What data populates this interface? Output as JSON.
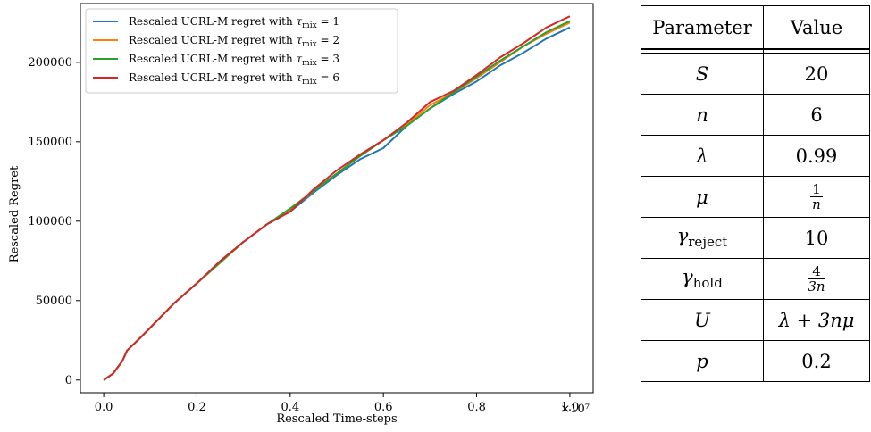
{
  "chart_data": {
    "type": "line",
    "title": "",
    "xlabel": "Rescaled Time-steps",
    "ylabel": "Rescaled Regret",
    "x_multiplier": "×10⁷",
    "xlim": [
      -0.05,
      1.05
    ],
    "ylim": [
      -8000,
      237000
    ],
    "xticks": [
      0.0,
      0.2,
      0.4,
      0.6,
      0.8,
      1.0
    ],
    "xtick_labels": [
      "0.0",
      "0.2",
      "0.4",
      "0.6",
      "0.8",
      "1.0"
    ],
    "yticks": [
      0,
      50000,
      100000,
      150000,
      200000
    ],
    "ytick_labels": [
      "0",
      "50000",
      "100000",
      "150000",
      "200000"
    ],
    "grid": false,
    "legend_position": "top-left",
    "x": [
      0.0,
      0.02,
      0.04,
      0.05,
      0.08,
      0.1,
      0.15,
      0.2,
      0.25,
      0.3,
      0.35,
      0.4,
      0.45,
      0.5,
      0.55,
      0.6,
      0.65,
      0.7,
      0.75,
      0.8,
      0.85,
      0.9,
      0.95,
      1.0
    ],
    "series": [
      {
        "name": "Rescaled UCRL-M regret with τ_mix = 1",
        "color": "#1f77b4",
        "values": [
          0,
          4000,
          12000,
          18500,
          27000,
          33000,
          48000,
          61000,
          74000,
          87000,
          98000,
          106000,
          118000,
          129000,
          139000,
          146000,
          160000,
          171000,
          180000,
          188000,
          198000,
          206000,
          215000,
          222000
        ]
      },
      {
        "name": "Rescaled UCRL-M regret with τ_mix = 2",
        "color": "#ff7f0e",
        "values": [
          0,
          4000,
          12000,
          18500,
          27000,
          33000,
          48000,
          61000,
          74000,
          87000,
          98000,
          107000,
          119000,
          130000,
          141000,
          151000,
          161000,
          173000,
          181000,
          190000,
          200000,
          210000,
          218000,
          225000
        ]
      },
      {
        "name": "Rescaled UCRL-M regret with τ_mix = 3",
        "color": "#2ca02c",
        "values": [
          0,
          4000,
          12000,
          18500,
          27000,
          33000,
          48000,
          61000,
          74000,
          87000,
          98000,
          108000,
          119000,
          130000,
          141000,
          151000,
          160000,
          171000,
          181000,
          191000,
          201000,
          210000,
          219000,
          226000
        ]
      },
      {
        "name": "Rescaled UCRL-M regret with τ_mix = 6",
        "color": "#d62728",
        "values": [
          0,
          4000,
          12000,
          18500,
          27000,
          33000,
          48000,
          61000,
          75000,
          87000,
          98000,
          106000,
          120000,
          132000,
          142000,
          151000,
          162000,
          175000,
          182000,
          192000,
          203000,
          212000,
          222000,
          229000
        ]
      }
    ]
  },
  "legend_labels": [
    {
      "prefix": "Rescaled UCRL-M regret with ",
      "symbol": "τ",
      "sub": "mix",
      "suffix": " = 1"
    },
    {
      "prefix": "Rescaled UCRL-M regret with ",
      "symbol": "τ",
      "sub": "mix",
      "suffix": " = 2"
    },
    {
      "prefix": "Rescaled UCRL-M regret with ",
      "symbol": "τ",
      "sub": "mix",
      "suffix": " = 3"
    },
    {
      "prefix": "Rescaled UCRL-M regret with ",
      "symbol": "τ",
      "sub": "mix",
      "suffix": " = 6"
    }
  ],
  "table": {
    "header": {
      "param": "Parameter",
      "value": "Value"
    },
    "rows": {
      "S": {
        "param": "S",
        "value": "20"
      },
      "n": {
        "param": "n",
        "value": "6"
      },
      "lambda": {
        "param": "λ",
        "value": "0.99"
      },
      "mu": {
        "param": "μ",
        "value_num": "1",
        "value_den": "n"
      },
      "gamma_reject": {
        "param": "γ",
        "param_sub": "reject",
        "value": "10"
      },
      "gamma_hold": {
        "param": "γ",
        "param_sub": "hold",
        "value_num": "4",
        "value_den": "3n"
      },
      "U": {
        "param": "U",
        "value": "λ + 3nμ"
      },
      "p": {
        "param": "p",
        "value": "0.2"
      }
    }
  }
}
